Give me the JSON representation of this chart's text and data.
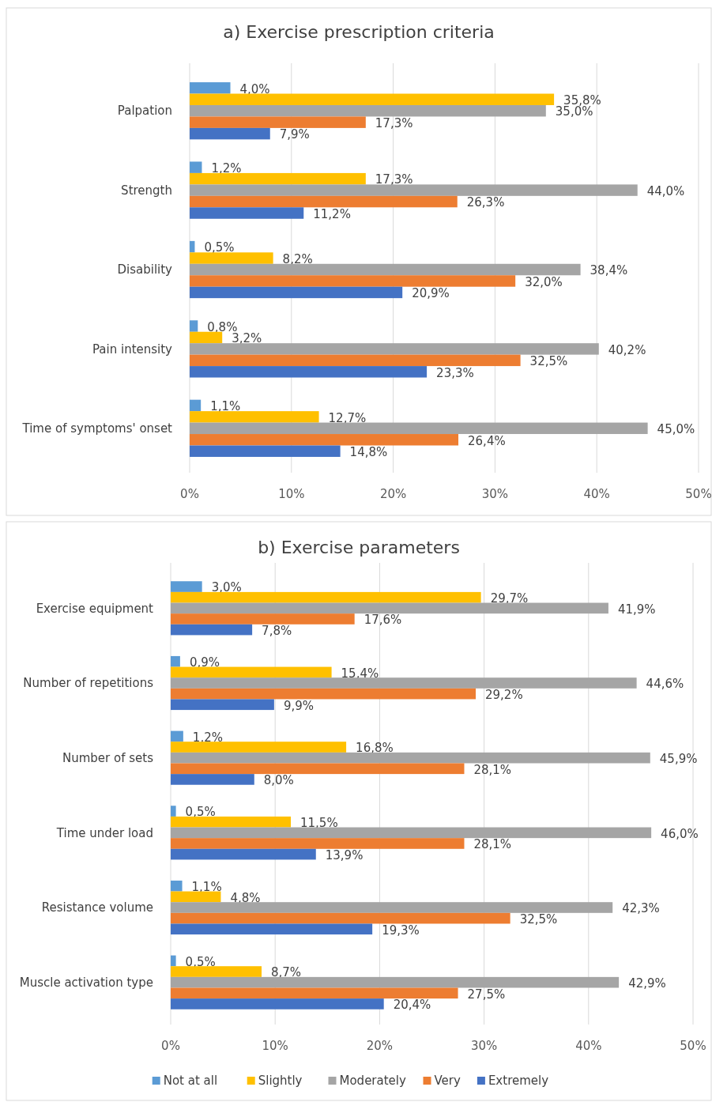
{
  "chart_data": [
    {
      "type": "bar",
      "orientation": "horizontal",
      "title": "a) Exercise prescription criteria",
      "categories": [
        "Palpation",
        "Strength",
        "Disability",
        "Pain intensity",
        "Time of symptoms' onset"
      ],
      "xlim": [
        0,
        50
      ],
      "xticks": [
        {
          "value": 0,
          "label": "0%"
        },
        {
          "value": 10,
          "label": "10%"
        },
        {
          "value": 20,
          "label": "20%"
        },
        {
          "value": 30,
          "label": "30%"
        },
        {
          "value": 40,
          "label": "40%"
        },
        {
          "value": 50,
          "label": "50%"
        }
      ],
      "grid": "x",
      "legend": false,
      "series": [
        {
          "color": "#5b9bd5",
          "values": [
            4.0,
            1.2,
            0.5,
            0.8,
            1.1
          ],
          "value_labels": [
            "4,0%",
            "1,2%",
            "0,5%",
            "0,8%",
            "1,1%"
          ]
        },
        {
          "color": "#ffc000",
          "values": [
            35.8,
            17.3,
            8.2,
            3.2,
            12.7
          ],
          "value_labels": [
            "35,8%",
            "17,3%",
            "8,2%",
            "3,2%",
            "12,7%"
          ]
        },
        {
          "color": "#a5a5a5",
          "values": [
            35.0,
            44.0,
            38.4,
            40.2,
            45.0
          ],
          "value_labels": [
            "35,0%",
            "44,0%",
            "38,4%",
            "40,2%",
            "45,0%"
          ]
        },
        {
          "color": "#ed7d31",
          "values": [
            17.3,
            26.3,
            32.0,
            32.5,
            26.4
          ],
          "value_labels": [
            "17,3%",
            "26,3%",
            "32,0%",
            "32,5%",
            "26,4%"
          ]
        },
        {
          "color": "#4472c4",
          "values": [
            7.9,
            11.2,
            20.9,
            23.3,
            14.8
          ],
          "value_labels": [
            "7,9%",
            "11,2%",
            "20,9%",
            "23,3%",
            "14,8%"
          ]
        }
      ]
    },
    {
      "type": "bar",
      "orientation": "horizontal",
      "title": "b) Exercise parameters",
      "categories": [
        "Exercise equipment",
        "Number of repetitions",
        "Number of sets",
        "Time under load",
        "Resistance volume",
        "Muscle activation type"
      ],
      "xlim": [
        0,
        50
      ],
      "xticks": [
        {
          "value": 0,
          "label": "0%"
        },
        {
          "value": 10,
          "label": "10%"
        },
        {
          "value": 20,
          "label": "20%"
        },
        {
          "value": 30,
          "label": "30%"
        },
        {
          "value": 40,
          "label": "40%"
        },
        {
          "value": 50,
          "label": "50%"
        }
      ],
      "grid": "x",
      "legend": "bottom",
      "series": [
        {
          "name": "Not at all",
          "color": "#5b9bd5",
          "values": [
            3.0,
            0.9,
            1.2,
            0.5,
            1.1,
            0.5
          ],
          "value_labels": [
            "3,0%",
            "0,9%",
            "1,2%",
            "0,5%",
            "1,1%",
            "0,5%"
          ]
        },
        {
          "name": "Slightly",
          "color": "#ffc000",
          "values": [
            29.7,
            15.4,
            16.8,
            11.5,
            4.8,
            8.7
          ],
          "value_labels": [
            "29,7%",
            "15,4%",
            "16,8%",
            "11,5%",
            "4,8%",
            "8,7%"
          ]
        },
        {
          "name": "Moderately",
          "color": "#a5a5a5",
          "values": [
            41.9,
            44.6,
            45.9,
            46.0,
            42.3,
            42.9
          ],
          "value_labels": [
            "41,9%",
            "44,6%",
            "45,9%",
            "46,0%",
            "42,3%",
            "42,9%"
          ]
        },
        {
          "name": "Very",
          "color": "#ed7d31",
          "values": [
            17.6,
            29.2,
            28.1,
            28.1,
            32.5,
            27.5
          ],
          "value_labels": [
            "17,6%",
            "29,2%",
            "28,1%",
            "28,1%",
            "32,5%",
            "27,5%"
          ]
        },
        {
          "name": "Extremely",
          "color": "#4472c4",
          "values": [
            7.8,
            9.9,
            8.0,
            13.9,
            19.3,
            20.4
          ],
          "value_labels": [
            "7,8%",
            "9,9%",
            "8,0%",
            "13,9%",
            "19,3%",
            "20,4%"
          ]
        }
      ]
    }
  ]
}
